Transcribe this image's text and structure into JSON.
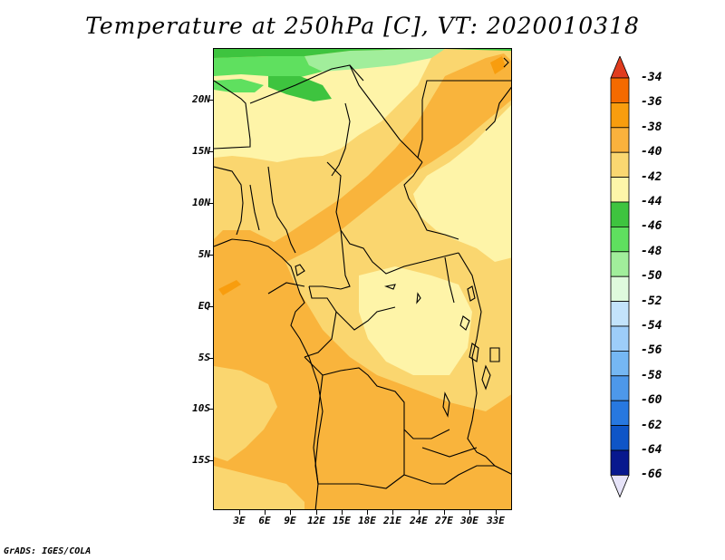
{
  "title": "Temperature at 250hPa [C], VT: 2020010318",
  "credit": "GrADS: IGES/COLA",
  "lat_labels": [
    "20N",
    "15N",
    "10N",
    "5N",
    "EQ",
    "5S",
    "10S",
    "15S"
  ],
  "lon_labels": [
    "3E",
    "6E",
    "9E",
    "12E",
    "15E",
    "18E",
    "21E",
    "24E",
    "27E",
    "30E",
    "33E"
  ],
  "colorbar": {
    "labels": [
      "-34",
      "-36",
      "-38",
      "-40",
      "-42",
      "-44",
      "-46",
      "-48",
      "-50",
      "-52",
      "-54",
      "-56",
      "-58",
      "-60",
      "-62",
      "-64",
      "-66"
    ],
    "colors": [
      "#e03c1e",
      "#f46a00",
      "#f89d0e",
      "#fab23d",
      "#fad771",
      "#fdf6a9",
      "#3ec43f",
      "#5fe05f",
      "#a1ee9b",
      "#dffadd",
      "#c3e3fb",
      "#9dcdf9",
      "#75b7f3",
      "#4d98ea",
      "#2778e0",
      "#0e55c7",
      "#08188e",
      "#e6e3f8"
    ]
  },
  "map_colors": {
    "c36": "#f89d0e",
    "c38": "#f9b43c",
    "c40": "#fad66f",
    "c42": "#fef4a8",
    "c44": "#3ec43f",
    "c46": "#5fe05f",
    "c48": "#a1ee9b"
  }
}
